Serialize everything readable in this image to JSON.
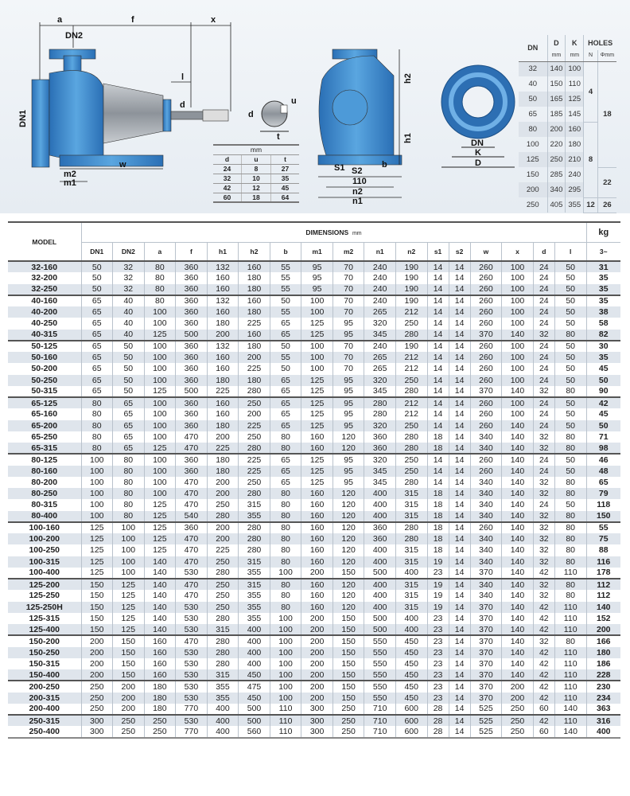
{
  "drawing": {
    "labels": {
      "a": "a",
      "f": "f",
      "x": "x",
      "dn2": "DN2",
      "dn1": "DN1",
      "l": "l",
      "d": "d",
      "m2": "m2",
      "m1": "m1",
      "w": "w",
      "u": "u",
      "t": "t",
      "d2": "d",
      "h2": "h2",
      "h1": "h1",
      "s1": "S1",
      "s2": "S2",
      "b": "b",
      "v110": "110",
      "n2": "n2",
      "n1": "n1",
      "dn": "DN",
      "k": "K",
      "D": "D"
    },
    "colors": {
      "pump": "#3a86c8",
      "motor": "#9aa0a6"
    }
  },
  "shaft_key_table": {
    "unit": "mm",
    "headers": [
      "d",
      "u",
      "t"
    ],
    "rows": [
      [
        "24",
        "8",
        "27"
      ],
      [
        "32",
        "10",
        "35"
      ],
      [
        "42",
        "12",
        "45"
      ],
      [
        "60",
        "18",
        "64"
      ]
    ]
  },
  "flange_table": {
    "headers": {
      "dn": "DN",
      "d": "D",
      "k": "K",
      "holes": "HOLES",
      "d_unit": "mm",
      "k_unit": "mm",
      "n": "N",
      "phi": "Φmm"
    },
    "rows": [
      [
        "32",
        "140",
        "100"
      ],
      [
        "40",
        "150",
        "110"
      ],
      [
        "50",
        "165",
        "125"
      ],
      [
        "65",
        "185",
        "145"
      ],
      [
        "80",
        "200",
        "160"
      ],
      [
        "100",
        "220",
        "180"
      ],
      [
        "125",
        "250",
        "210"
      ],
      [
        "150",
        "285",
        "240"
      ],
      [
        "200",
        "340",
        "295"
      ],
      [
        "250",
        "405",
        "355"
      ]
    ],
    "n_groups": [
      "4",
      "8",
      "12"
    ],
    "phi_groups": [
      "18",
      "22",
      "26"
    ]
  },
  "main_table": {
    "model_header": "MODEL",
    "dimensions_header": "DIMENSIONS",
    "dimensions_unit": "mm",
    "kg_header": "kg",
    "kg_sub": "3~",
    "columns": [
      "DN1",
      "DN2",
      "a",
      "f",
      "h1",
      "h2",
      "b",
      "m1",
      "m2",
      "n1",
      "n2",
      "s1",
      "s2",
      "w",
      "x",
      "d",
      "l"
    ],
    "rows": [
      [
        "32-160",
        "50",
        "32",
        "80",
        "360",
        "132",
        "160",
        "55",
        "95",
        "70",
        "240",
        "190",
        "14",
        "14",
        "260",
        "100",
        "24",
        "50",
        "31"
      ],
      [
        "32-200",
        "50",
        "32",
        "80",
        "360",
        "160",
        "180",
        "55",
        "95",
        "70",
        "240",
        "190",
        "14",
        "14",
        "260",
        "100",
        "24",
        "50",
        "35"
      ],
      [
        "32-250",
        "50",
        "32",
        "80",
        "360",
        "160",
        "180",
        "55",
        "95",
        "70",
        "240",
        "190",
        "14",
        "14",
        "260",
        "100",
        "24",
        "50",
        "35"
      ],
      [
        "40-160",
        "65",
        "40",
        "80",
        "360",
        "132",
        "160",
        "50",
        "100",
        "70",
        "240",
        "190",
        "14",
        "14",
        "260",
        "100",
        "24",
        "50",
        "35"
      ],
      [
        "40-200",
        "65",
        "40",
        "100",
        "360",
        "160",
        "180",
        "55",
        "100",
        "70",
        "265",
        "212",
        "14",
        "14",
        "260",
        "100",
        "24",
        "50",
        "38"
      ],
      [
        "40-250",
        "65",
        "40",
        "100",
        "360",
        "180",
        "225",
        "65",
        "125",
        "95",
        "320",
        "250",
        "14",
        "14",
        "260",
        "100",
        "24",
        "50",
        "58"
      ],
      [
        "40-315",
        "65",
        "40",
        "125",
        "500",
        "200",
        "160",
        "65",
        "125",
        "95",
        "345",
        "280",
        "14",
        "14",
        "370",
        "140",
        "32",
        "80",
        "82"
      ],
      [
        "50-125",
        "65",
        "50",
        "100",
        "360",
        "132",
        "180",
        "50",
        "100",
        "70",
        "240",
        "190",
        "14",
        "14",
        "260",
        "100",
        "24",
        "50",
        "30"
      ],
      [
        "50-160",
        "65",
        "50",
        "100",
        "360",
        "160",
        "200",
        "55",
        "100",
        "70",
        "265",
        "212",
        "14",
        "14",
        "260",
        "100",
        "24",
        "50",
        "35"
      ],
      [
        "50-200",
        "65",
        "50",
        "100",
        "360",
        "160",
        "225",
        "50",
        "100",
        "70",
        "265",
        "212",
        "14",
        "14",
        "260",
        "100",
        "24",
        "50",
        "45"
      ],
      [
        "50-250",
        "65",
        "50",
        "100",
        "360",
        "180",
        "180",
        "65",
        "125",
        "95",
        "320",
        "250",
        "14",
        "14",
        "260",
        "100",
        "24",
        "50",
        "50"
      ],
      [
        "50-315",
        "65",
        "50",
        "125",
        "500",
        "225",
        "280",
        "65",
        "125",
        "95",
        "345",
        "280",
        "14",
        "14",
        "370",
        "140",
        "32",
        "80",
        "90"
      ],
      [
        "65-125",
        "80",
        "65",
        "100",
        "360",
        "160",
        "250",
        "65",
        "125",
        "95",
        "280",
        "212",
        "14",
        "14",
        "260",
        "100",
        "24",
        "50",
        "42"
      ],
      [
        "65-160",
        "80",
        "65",
        "100",
        "360",
        "160",
        "200",
        "65",
        "125",
        "95",
        "280",
        "212",
        "14",
        "14",
        "260",
        "100",
        "24",
        "50",
        "45"
      ],
      [
        "65-200",
        "80",
        "65",
        "100",
        "360",
        "180",
        "225",
        "65",
        "125",
        "95",
        "320",
        "250",
        "14",
        "14",
        "260",
        "140",
        "24",
        "50",
        "50"
      ],
      [
        "65-250",
        "80",
        "65",
        "100",
        "470",
        "200",
        "250",
        "80",
        "160",
        "120",
        "360",
        "280",
        "18",
        "14",
        "340",
        "140",
        "32",
        "80",
        "71"
      ],
      [
        "65-315",
        "80",
        "65",
        "125",
        "470",
        "225",
        "280",
        "80",
        "160",
        "120",
        "360",
        "280",
        "18",
        "14",
        "340",
        "140",
        "32",
        "80",
        "98"
      ],
      [
        "80-125",
        "100",
        "80",
        "100",
        "360",
        "180",
        "225",
        "65",
        "125",
        "95",
        "320",
        "250",
        "14",
        "14",
        "260",
        "140",
        "24",
        "50",
        "46"
      ],
      [
        "80-160",
        "100",
        "80",
        "100",
        "360",
        "180",
        "225",
        "65",
        "125",
        "95",
        "345",
        "250",
        "14",
        "14",
        "260",
        "140",
        "24",
        "50",
        "48"
      ],
      [
        "80-200",
        "100",
        "80",
        "100",
        "470",
        "200",
        "250",
        "65",
        "125",
        "95",
        "345",
        "280",
        "14",
        "14",
        "340",
        "140",
        "32",
        "80",
        "65"
      ],
      [
        "80-250",
        "100",
        "80",
        "100",
        "470",
        "200",
        "280",
        "80",
        "160",
        "120",
        "400",
        "315",
        "18",
        "14",
        "340",
        "140",
        "32",
        "80",
        "79"
      ],
      [
        "80-315",
        "100",
        "80",
        "125",
        "470",
        "250",
        "315",
        "80",
        "160",
        "120",
        "400",
        "315",
        "18",
        "14",
        "340",
        "140",
        "24",
        "50",
        "118"
      ],
      [
        "80-400",
        "100",
        "80",
        "125",
        "540",
        "280",
        "355",
        "80",
        "160",
        "120",
        "400",
        "315",
        "18",
        "14",
        "340",
        "140",
        "32",
        "80",
        "150"
      ],
      [
        "100-160",
        "125",
        "100",
        "125",
        "360",
        "200",
        "280",
        "80",
        "160",
        "120",
        "360",
        "280",
        "18",
        "14",
        "260",
        "140",
        "32",
        "80",
        "55"
      ],
      [
        "100-200",
        "125",
        "100",
        "125",
        "470",
        "200",
        "280",
        "80",
        "160",
        "120",
        "360",
        "280",
        "18",
        "14",
        "340",
        "140",
        "32",
        "80",
        "75"
      ],
      [
        "100-250",
        "125",
        "100",
        "125",
        "470",
        "225",
        "280",
        "80",
        "160",
        "120",
        "400",
        "315",
        "18",
        "14",
        "340",
        "140",
        "32",
        "80",
        "88"
      ],
      [
        "100-315",
        "125",
        "100",
        "140",
        "470",
        "250",
        "315",
        "80",
        "160",
        "120",
        "400",
        "315",
        "19",
        "14",
        "340",
        "140",
        "32",
        "80",
        "116"
      ],
      [
        "100-400",
        "125",
        "100",
        "140",
        "530",
        "280",
        "355",
        "100",
        "200",
        "150",
        "500",
        "400",
        "23",
        "14",
        "370",
        "140",
        "42",
        "110",
        "178"
      ],
      [
        "125-200",
        "150",
        "125",
        "140",
        "470",
        "250",
        "315",
        "80",
        "160",
        "120",
        "400",
        "315",
        "19",
        "14",
        "340",
        "140",
        "32",
        "80",
        "112"
      ],
      [
        "125-250",
        "150",
        "125",
        "140",
        "470",
        "250",
        "355",
        "80",
        "160",
        "120",
        "400",
        "315",
        "19",
        "14",
        "340",
        "140",
        "32",
        "80",
        "112"
      ],
      [
        "125-250H",
        "150",
        "125",
        "140",
        "530",
        "250",
        "355",
        "80",
        "160",
        "120",
        "400",
        "315",
        "19",
        "14",
        "370",
        "140",
        "42",
        "110",
        "140"
      ],
      [
        "125-315",
        "150",
        "125",
        "140",
        "530",
        "280",
        "355",
        "100",
        "200",
        "150",
        "500",
        "400",
        "23",
        "14",
        "370",
        "140",
        "42",
        "110",
        "152"
      ],
      [
        "125-400",
        "150",
        "125",
        "140",
        "530",
        "315",
        "400",
        "100",
        "200",
        "150",
        "500",
        "400",
        "23",
        "14",
        "370",
        "140",
        "42",
        "110",
        "200"
      ],
      [
        "150-200",
        "200",
        "150",
        "160",
        "470",
        "280",
        "400",
        "100",
        "200",
        "150",
        "550",
        "450",
        "23",
        "14",
        "370",
        "140",
        "32",
        "80",
        "166"
      ],
      [
        "150-250",
        "200",
        "150",
        "160",
        "530",
        "280",
        "400",
        "100",
        "200",
        "150",
        "550",
        "450",
        "23",
        "14",
        "370",
        "140",
        "42",
        "110",
        "180"
      ],
      [
        "150-315",
        "200",
        "150",
        "160",
        "530",
        "280",
        "400",
        "100",
        "200",
        "150",
        "550",
        "450",
        "23",
        "14",
        "370",
        "140",
        "42",
        "110",
        "186"
      ],
      [
        "150-400",
        "200",
        "150",
        "160",
        "530",
        "315",
        "450",
        "100",
        "200",
        "150",
        "550",
        "450",
        "23",
        "14",
        "370",
        "140",
        "42",
        "110",
        "228"
      ],
      [
        "200-250",
        "250",
        "200",
        "180",
        "530",
        "355",
        "475",
        "100",
        "200",
        "150",
        "550",
        "450",
        "23",
        "14",
        "370",
        "200",
        "42",
        "110",
        "230"
      ],
      [
        "200-315",
        "250",
        "200",
        "180",
        "530",
        "355",
        "450",
        "100",
        "200",
        "150",
        "550",
        "450",
        "23",
        "14",
        "370",
        "200",
        "42",
        "110",
        "234"
      ],
      [
        "200-400",
        "250",
        "200",
        "180",
        "770",
        "400",
        "500",
        "110",
        "300",
        "250",
        "710",
        "600",
        "28",
        "14",
        "525",
        "250",
        "60",
        "140",
        "363"
      ],
      [
        "250-315",
        "300",
        "250",
        "250",
        "530",
        "400",
        "500",
        "110",
        "300",
        "250",
        "710",
        "600",
        "28",
        "14",
        "525",
        "250",
        "42",
        "110",
        "316"
      ],
      [
        "250-400",
        "300",
        "250",
        "250",
        "770",
        "400",
        "560",
        "110",
        "300",
        "250",
        "710",
        "600",
        "28",
        "14",
        "525",
        "250",
        "60",
        "140",
        "400"
      ]
    ]
  }
}
